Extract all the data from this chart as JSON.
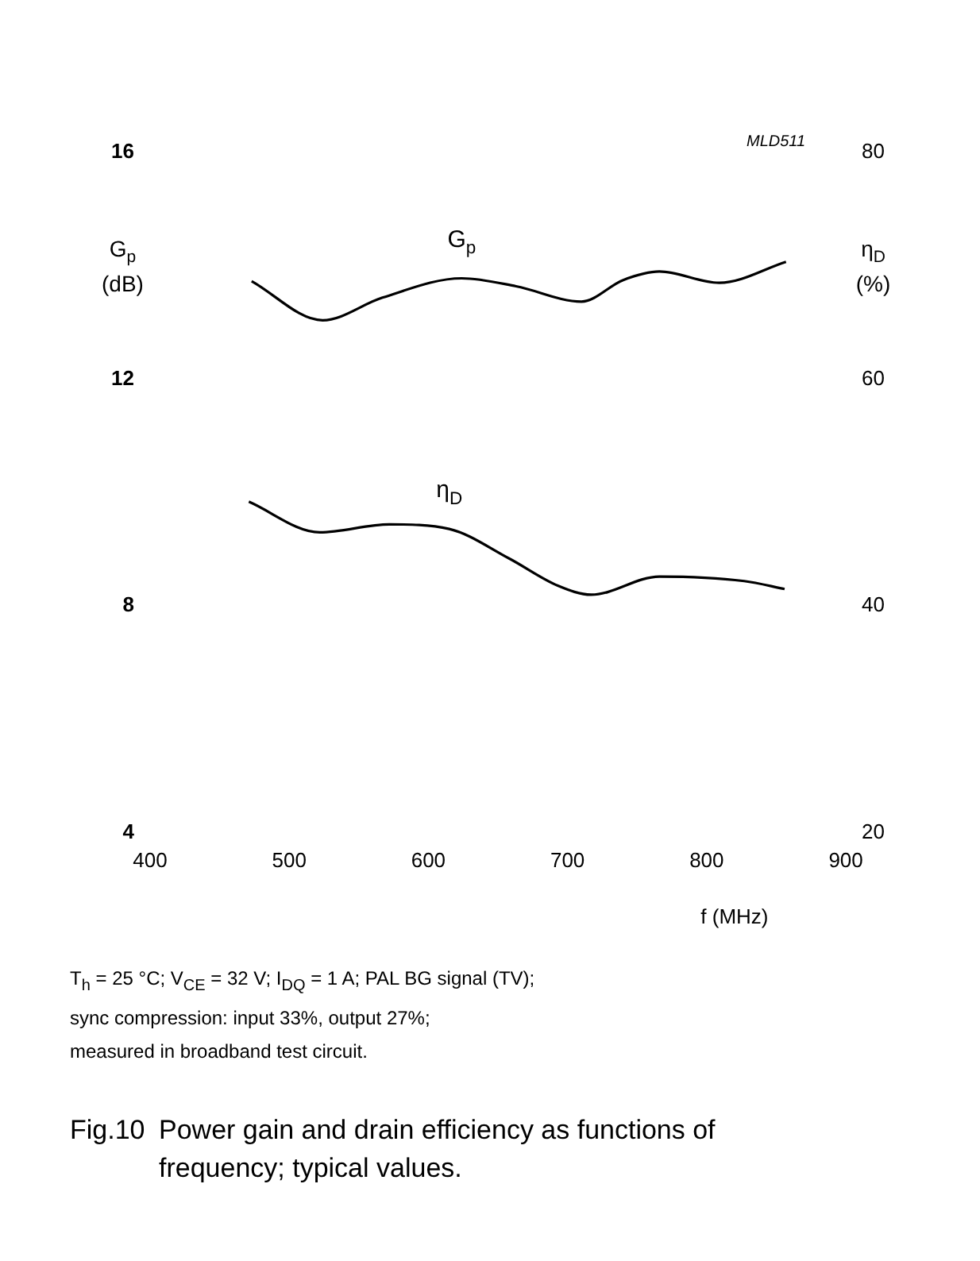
{
  "chart_data": {
    "type": "line",
    "title": "Fig.10  Power gain and drain efficiency as functions of frequency; typical values.",
    "xlabel": "f (MHz)",
    "ylabel": "G$_{p}$ (dB)",
    "y2label": "η$_{D}$ (%)",
    "annotations": [
      "MLD511",
      "T$_{h}$ = 25 °C; V$_{CE}$ = 32 V; I$_{DQ}$ = 1 A; PAL BG signal (TV);",
      "sync compression: input 33%, output 27%;",
      "measured in broadband test circuit."
    ],
    "xlim": [
      400,
      900
    ],
    "xticks": [
      400,
      500,
      600,
      700,
      800,
      900
    ],
    "ylim": [
      4,
      16
    ],
    "yticks": [
      4,
      8,
      12,
      16
    ],
    "y2lim": [
      20,
      80
    ],
    "y2ticks": [
      20,
      40,
      60,
      80
    ],
    "grid": false,
    "legend": false,
    "marker": "none",
    "line_style": "solid",
    "series": [
      {
        "name": "G$_{p}$",
        "color": "#000000",
        "x": [
          473,
          524,
          567,
          624,
          663,
          710,
          740,
          766,
          809,
          857
        ],
        "values": [
          13.73,
          13.04,
          13.44,
          13.78,
          13.64,
          13.37,
          13.75,
          13.9,
          13.7,
          14.07
        ]
      },
      {
        "name": "η$_{D}$",
        "color": "#000000",
        "axis": "y2",
        "x": [
          471,
          522,
          572,
          615,
          658,
          693,
          717,
          766,
          827,
          856
        ],
        "values": [
          49.2,
          46.5,
          47.2,
          46.8,
          44.2,
          41.8,
          41.0,
          42.6,
          42.2,
          41.5
        ]
      }
    ]
  }
}
